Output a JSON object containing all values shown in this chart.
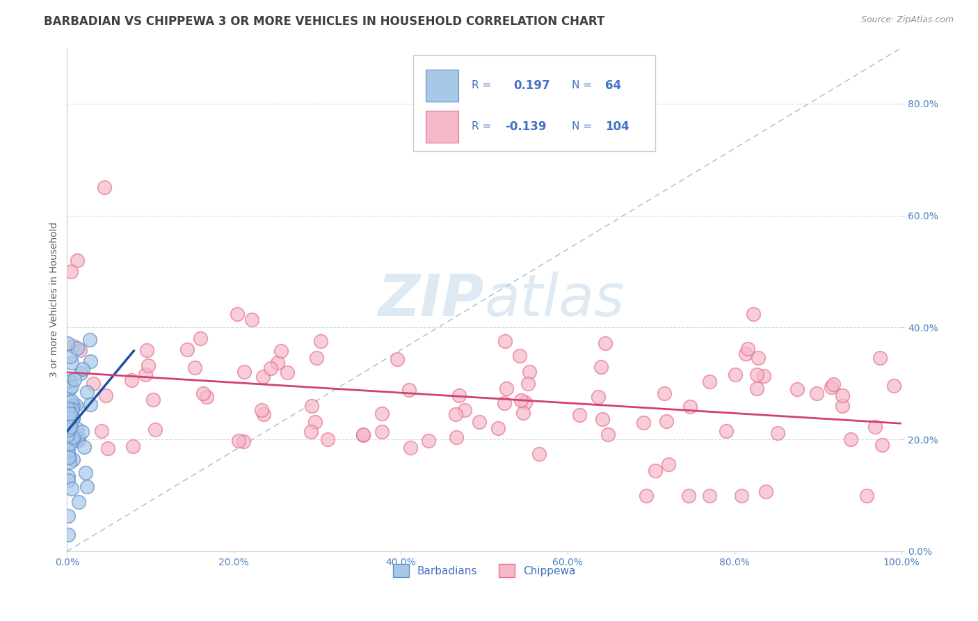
{
  "title": "BARBADIAN VS CHIPPEWA 3 OR MORE VEHICLES IN HOUSEHOLD CORRELATION CHART",
  "source": "Source: ZipAtlas.com",
  "ylabel": "3 or more Vehicles in Household",
  "watermark_zip": "ZIP",
  "watermark_atlas": "atlas",
  "background_color": "#ffffff",
  "blue_scatter_face": "#a8c8e8",
  "blue_scatter_edge": "#6090c8",
  "pink_scatter_face": "#f4b8c8",
  "pink_scatter_edge": "#e87090",
  "trend_blue": "#2050a0",
  "trend_pink": "#d04070",
  "diag_color": "#90b8d8",
  "grid_color": "#c8d4e0",
  "title_color": "#404040",
  "source_color": "#909090",
  "tick_color": "#5080c0",
  "legend_text_color": "#4472c4",
  "figsize": [
    14.06,
    8.92
  ],
  "dpi": 100,
  "xlim": [
    0,
    100
  ],
  "ylim": [
    0,
    90
  ],
  "x_ticks": [
    0,
    20,
    40,
    60,
    80,
    100
  ],
  "y_ticks": [
    0,
    20,
    40,
    60,
    80
  ],
  "legend_r1": "0.197",
  "legend_n1": "64",
  "legend_r2": "-0.139",
  "legend_n2": "104"
}
